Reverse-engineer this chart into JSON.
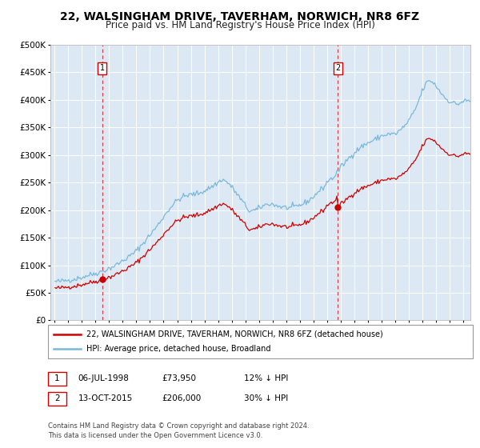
{
  "title": "22, WALSINGHAM DRIVE, TAVERHAM, NORWICH, NR8 6FZ",
  "subtitle": "Price paid vs. HM Land Registry's House Price Index (HPI)",
  "title_fontsize": 10,
  "subtitle_fontsize": 8.5,
  "plot_bg_color": "#dce9f5",
  "grid_color": "#ffffff",
  "hpi_color": "#7ab8d9",
  "price_color": "#cc0000",
  "purchase1_date": 1998.51,
  "purchase1_price": 73950,
  "purchase2_date": 2015.78,
  "purchase2_price": 206000,
  "legend_line1": "22, WALSINGHAM DRIVE, TAVERHAM, NORWICH, NR8 6FZ (detached house)",
  "legend_line2": "HPI: Average price, detached house, Broadland",
  "note1_num": "1",
  "note1_date": "06-JUL-1998",
  "note1_price": "£73,950",
  "note1_hpi": "12% ↓ HPI",
  "note2_num": "2",
  "note2_date": "13-OCT-2015",
  "note2_price": "£206,000",
  "note2_hpi": "30% ↓ HPI",
  "footer": "Contains HM Land Registry data © Crown copyright and database right 2024.\nThis data is licensed under the Open Government Licence v3.0.",
  "ylim_min": 0,
  "ylim_max": 500000,
  "fig_bg": "#ffffff"
}
